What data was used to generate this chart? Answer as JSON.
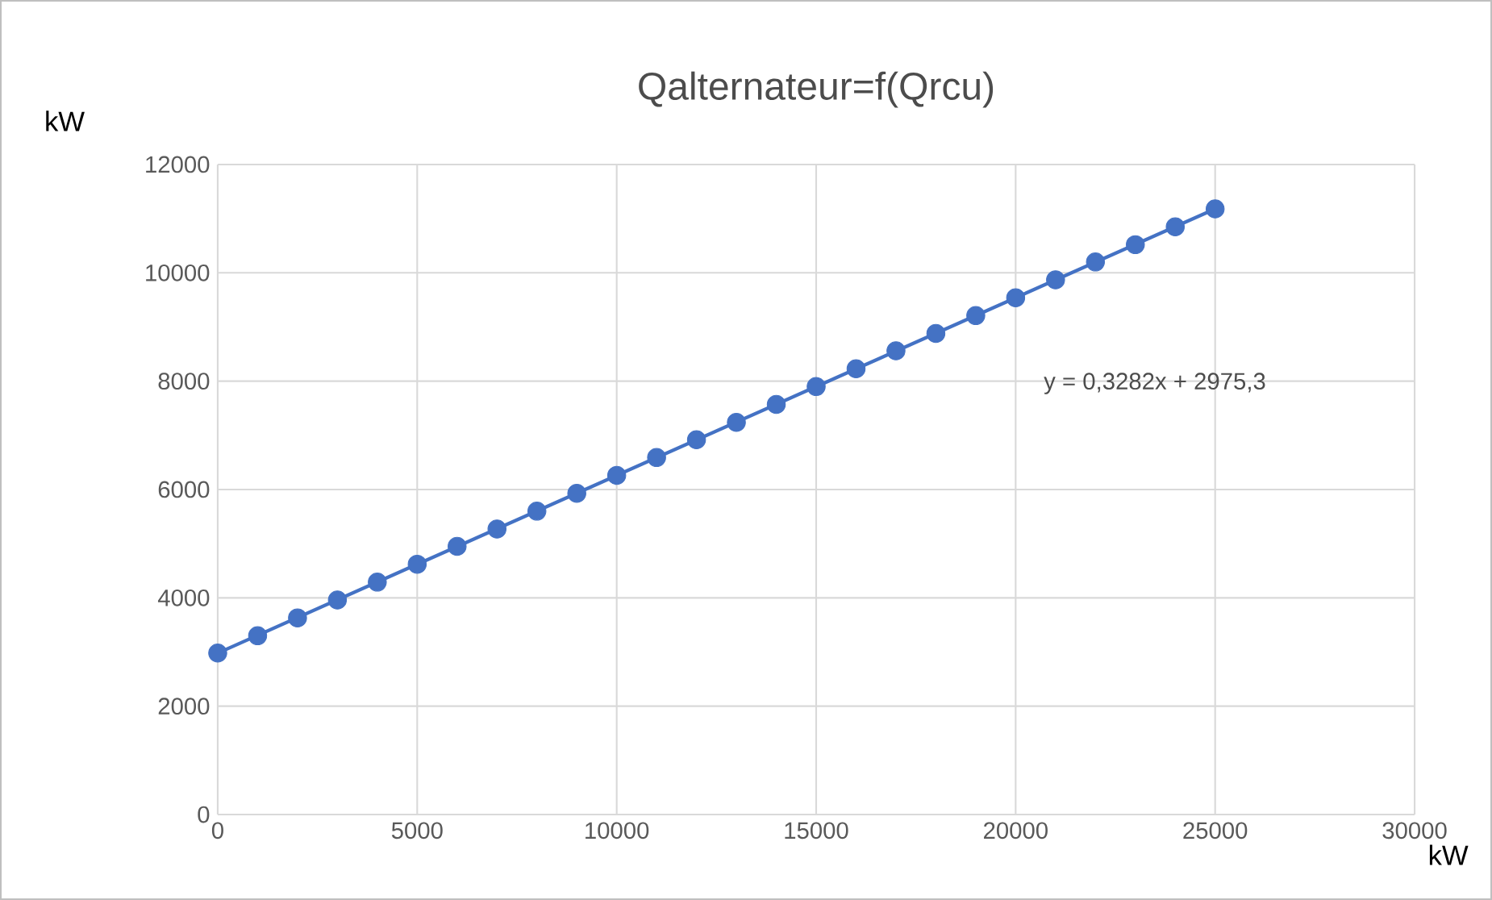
{
  "chart_data": {
    "type": "scatter",
    "title": "Qalternateur=f(Qrcu)",
    "xlabel": "kW",
    "ylabel": "kW",
    "xlim": [
      0,
      30000
    ],
    "ylim": [
      0,
      12000
    ],
    "xticks": [
      0,
      5000,
      10000,
      15000,
      20000,
      25000,
      30000
    ],
    "yticks": [
      0,
      2000,
      4000,
      6000,
      8000,
      10000,
      12000
    ],
    "grid": true,
    "marker": "circle",
    "annotations": [
      "y = 0,3282x + 2975,3"
    ],
    "series": [
      {
        "color": "#4472c4",
        "x": [
          0,
          1000,
          2000,
          3000,
          4000,
          5000,
          6000,
          7000,
          8000,
          9000,
          10000,
          11000,
          12000,
          13000,
          14000,
          15000,
          16000,
          17000,
          18000,
          19000,
          20000,
          21000,
          22000,
          23000,
          24000,
          25000
        ],
        "values": [
          2980,
          3300,
          3630,
          3960,
          4290,
          4620,
          4950,
          5270,
          5600,
          5930,
          6260,
          6590,
          6920,
          7240,
          7570,
          7900,
          8230,
          8560,
          8880,
          9210,
          9540,
          9870,
          10200,
          10520,
          10850,
          11180
        ]
      },
      {
        "type": "line",
        "marker": "none",
        "color": "#4472c4",
        "x": [
          0,
          25000
        ],
        "values": [
          2980,
          11180
        ]
      }
    ]
  }
}
